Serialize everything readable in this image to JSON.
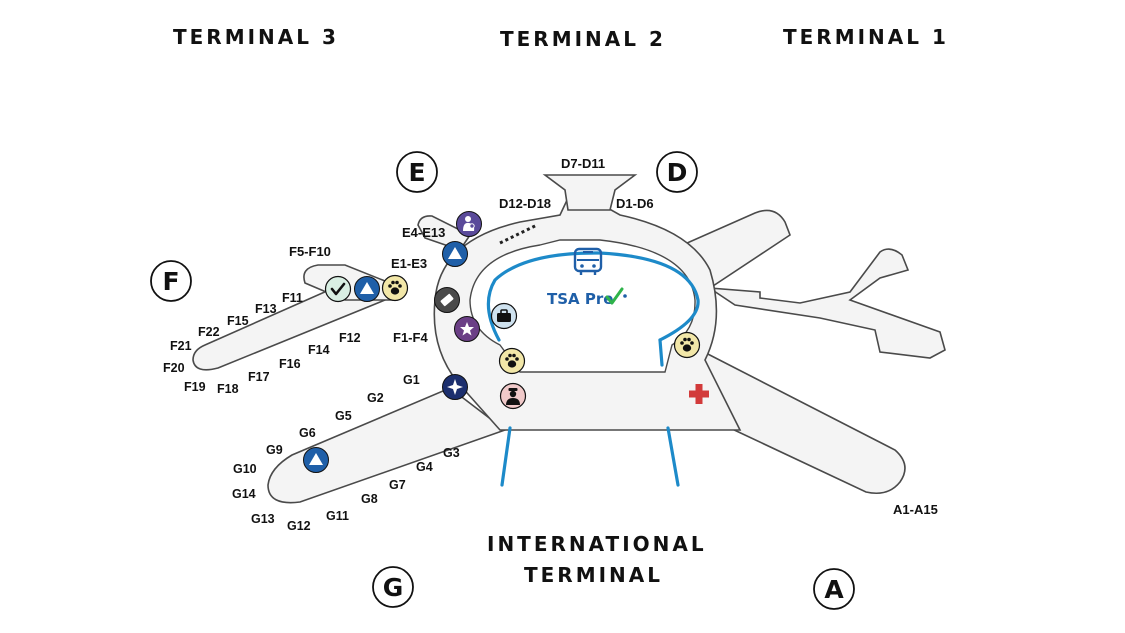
{
  "terminals": {
    "t3": "TERMINAL 3",
    "t2": "TERMINAL 2",
    "t1": "TERMINAL 1",
    "intl_line1": "INTERNATIONAL",
    "intl_line2": "TERMINAL"
  },
  "boarding_areas": {
    "e": "E",
    "d": "D",
    "f": "F",
    "g": "G",
    "a": "A"
  },
  "gates": {
    "d7_d11": "D7-D11",
    "d12_d18": "D12-D18",
    "d1_d6": "D1-D6",
    "e4_e13": "E4-E13",
    "e1_e3": "E1-E3",
    "f5_f10": "F5-F10",
    "f1_f4": "F1-F4",
    "f11": "F11",
    "f13": "F13",
    "f15": "F15",
    "f22": "F22",
    "f21": "F21",
    "f20": "F20",
    "f19": "F19",
    "f18": "F18",
    "f17": "F17",
    "f16": "F16",
    "f14": "F14",
    "f12": "F12",
    "g1": "G1",
    "g2": "G2",
    "g5": "G5",
    "g6": "G6",
    "g9": "G9",
    "g10": "G10",
    "g14": "G14",
    "g13": "G13",
    "g12": "G12",
    "g11": "G11",
    "g8": "G8",
    "g7": "G7",
    "g4": "G4",
    "g3": "G3",
    "a1_a15": "A1-A15"
  },
  "tsa_precheck": {
    "label": "TSA Pre",
    "check_color": "#2fb34a"
  },
  "icons": {
    "nursing_room": "nursing-room-icon",
    "restroom_triangle": "restroom-icon",
    "pet_relief": "pet-relief-icon",
    "checkpoint": "check-icon",
    "airline_lounge": "lounge-icon",
    "luggage": "luggage-icon",
    "amenity_star": "star-icon",
    "compass_star": "compass-star-icon",
    "customs_officer": "officer-icon",
    "first_aid": "first-aid-icon",
    "airtrain_bus": "bus-icon"
  },
  "colors": {
    "airtrain_line": "#1d8ac9",
    "restroom_blue": "#1f5fa8",
    "pet_yellow": "#f2e7a8",
    "purple": "#6b3f86",
    "navy": "#1c2f6e",
    "first_aid_red": "#d23a3a"
  }
}
